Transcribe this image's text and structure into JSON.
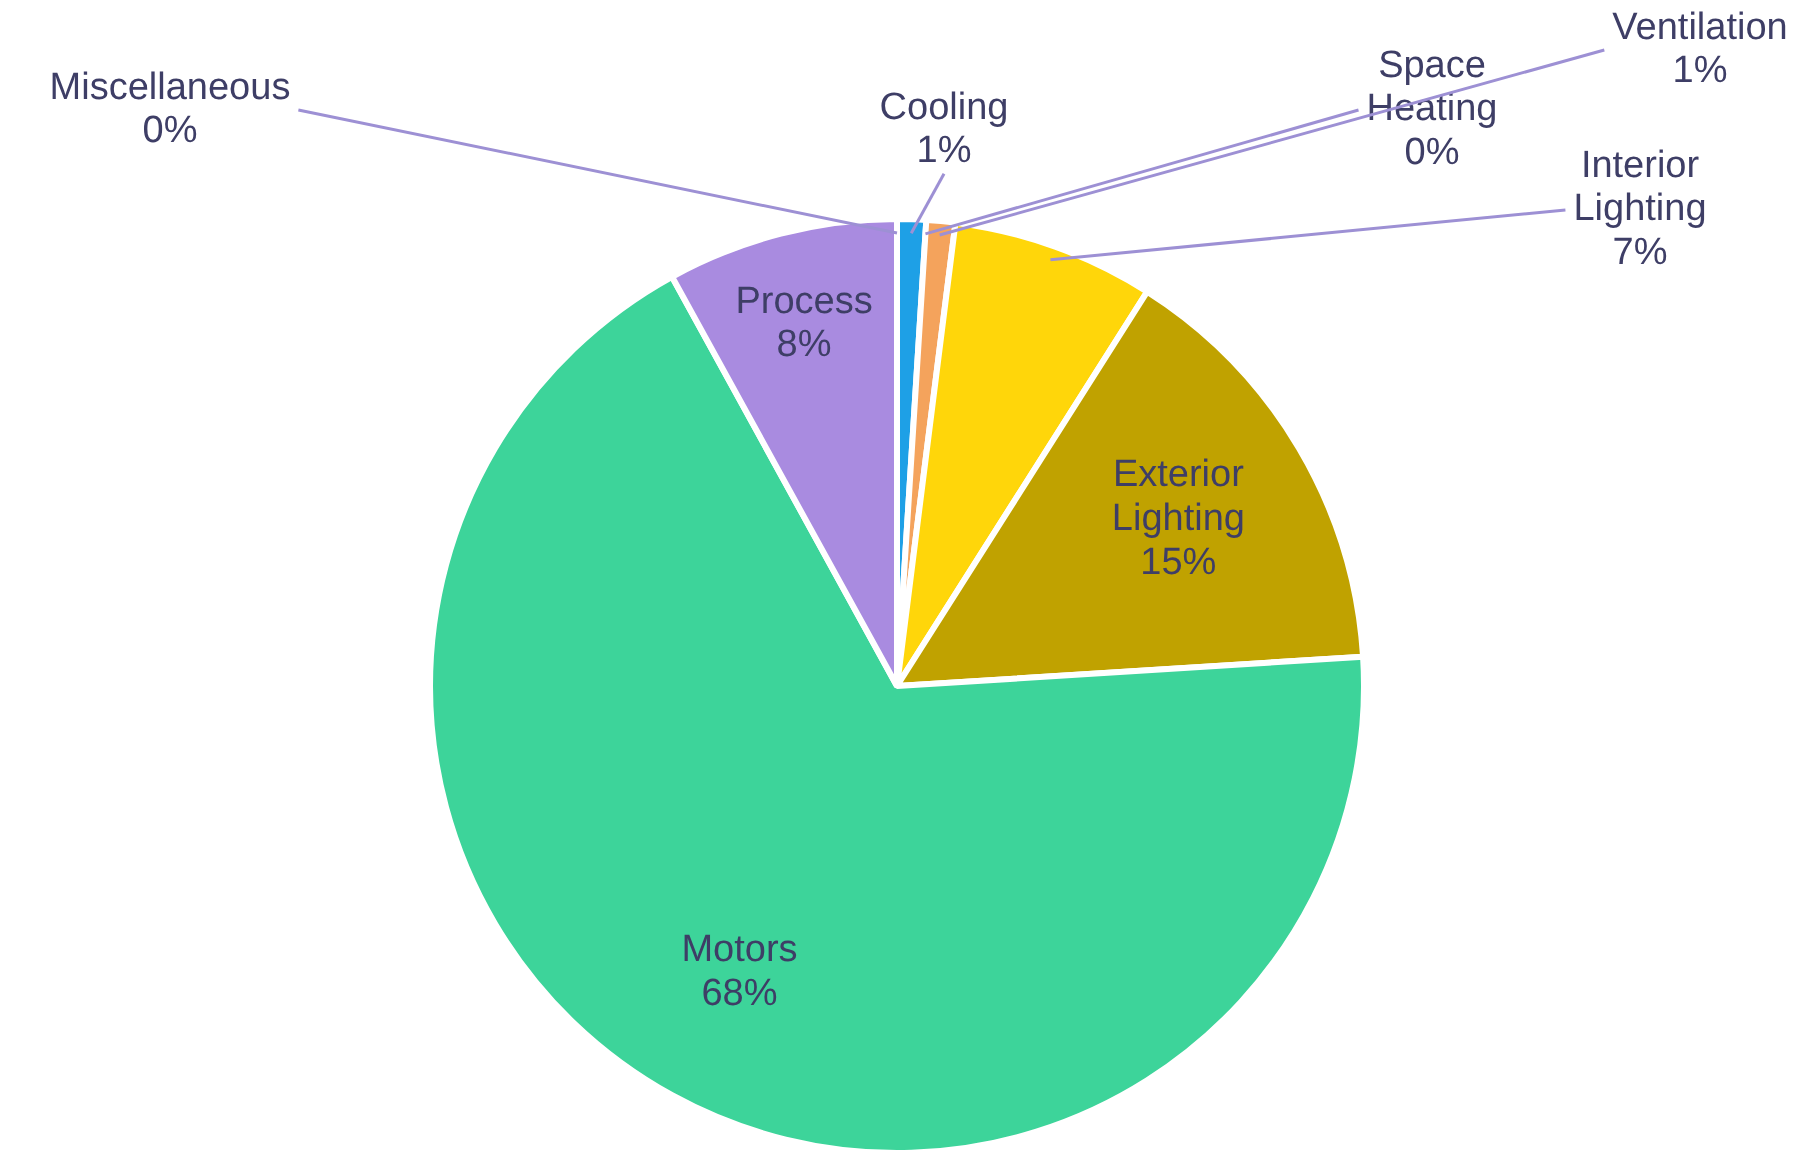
{
  "chart_data": {
    "type": "pie",
    "categories": [
      "Cooling",
      "Space Heating",
      "Ventilation",
      "Interior Lighting",
      "Exterior Lighting",
      "Motors",
      "Process",
      "Miscellaneous"
    ],
    "values": [
      1,
      0,
      1,
      7,
      15,
      68,
      8,
      0
    ],
    "colors": [
      "#1ea0e6",
      "#c7a0e0",
      "#f4a35c",
      "#ffd60a",
      "#c0a200",
      "#3dd49a",
      "#a98be0",
      "#8f7fd0"
    ],
    "value_labels": [
      "1%",
      "0%",
      "1%",
      "7%",
      "15%",
      "68%",
      "8%",
      "0%"
    ],
    "legend": false
  }
}
